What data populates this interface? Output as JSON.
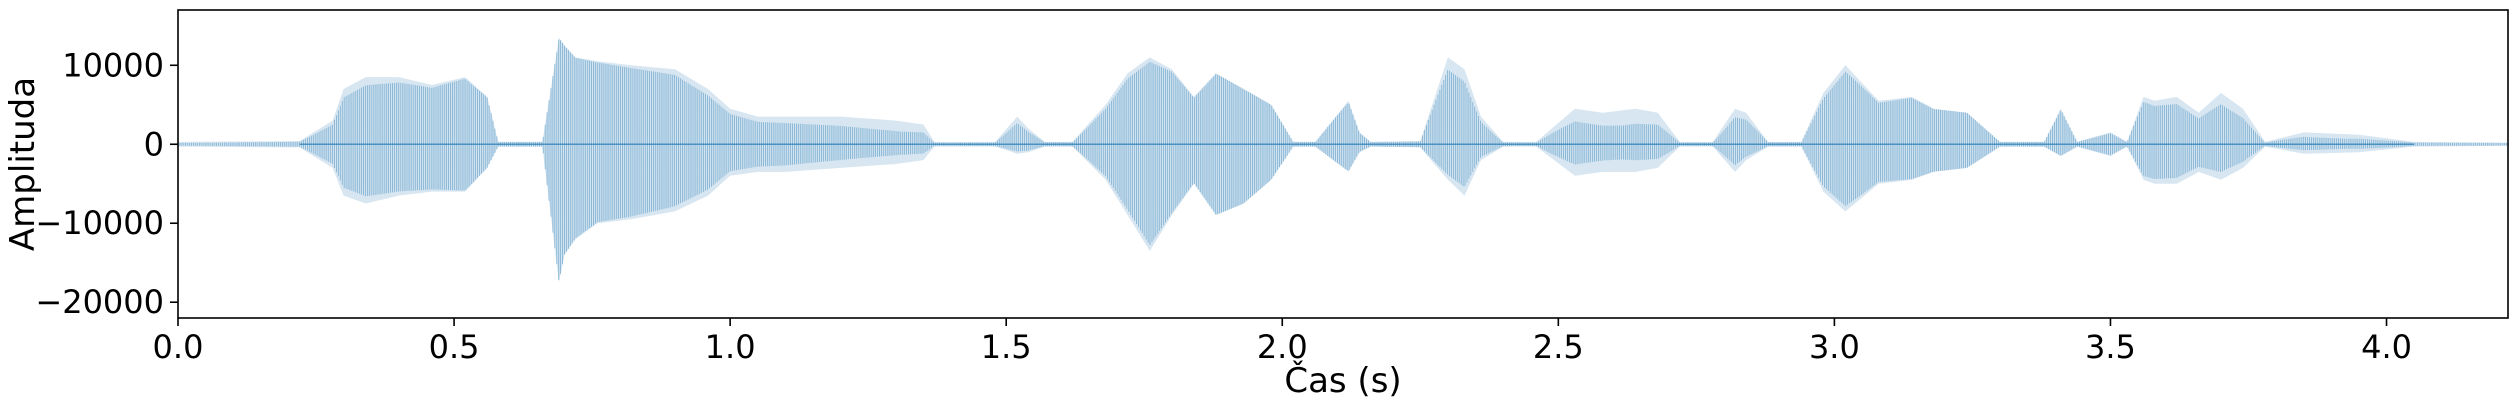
{
  "chart_data": {
    "type": "line",
    "title": "",
    "xlabel": "Čas (s)",
    "ylabel": "Amplituda",
    "xlim": [
      0.0,
      4.22
    ],
    "ylim": [
      -22000,
      17000
    ],
    "x_ticks": [
      0.0,
      0.5,
      1.0,
      1.5,
      2.0,
      2.5,
      3.0,
      3.5,
      4.0
    ],
    "x_tick_labels": [
      "0.0",
      "0.5",
      "1.0",
      "1.5",
      "2.0",
      "2.5",
      "3.0",
      "3.5",
      "4.0"
    ],
    "y_ticks": [
      10000,
      0,
      -10000,
      -20000
    ],
    "y_tick_labels": [
      "10000",
      "0",
      "−10000",
      "−20000"
    ],
    "grid": false,
    "line_color": "#1f77b4",
    "series": [
      {
        "x": [
          0.0,
          0.22,
          0.28,
          0.3,
          0.34,
          0.4,
          0.46,
          0.52,
          0.56,
          0.58,
          0.62,
          0.66,
          0.69,
          0.7,
          0.72,
          0.76,
          0.82,
          0.9,
          0.96,
          1.0,
          1.05,
          1.1,
          1.2,
          1.3,
          1.35,
          1.37,
          1.48,
          1.52,
          1.54,
          1.57,
          1.62,
          1.68,
          1.72,
          1.76,
          1.8,
          1.84,
          1.88,
          1.93,
          1.98,
          2.02,
          2.06,
          2.12,
          2.14,
          2.16,
          2.25,
          2.3,
          2.33,
          2.36,
          2.4,
          2.46,
          2.53,
          2.58,
          2.64,
          2.68,
          2.72,
          2.78,
          2.82,
          2.84,
          2.88,
          2.94,
          2.98,
          3.02,
          3.08,
          3.14,
          3.18,
          3.24,
          3.3,
          3.38,
          3.41,
          3.44,
          3.5,
          3.53,
          3.56,
          3.58,
          3.62,
          3.66,
          3.7,
          3.74,
          3.78,
          3.85,
          3.95,
          4.05,
          4.22
        ],
        "y_max": [
          300,
          400,
          3000,
          7000,
          8500,
          8500,
          7500,
          8500,
          6000,
          300,
          300,
          300,
          13500,
          12500,
          11000,
          10500,
          10000,
          9500,
          7000,
          4500,
          3500,
          3500,
          3500,
          3000,
          2500,
          300,
          300,
          3500,
          2000,
          300,
          300,
          5000,
          9000,
          11000,
          9500,
          6000,
          9000,
          7000,
          5000,
          300,
          300,
          5500,
          1500,
          300,
          400,
          11000,
          9500,
          3500,
          300,
          300,
          4500,
          4000,
          4500,
          4000,
          300,
          300,
          4500,
          4000,
          300,
          300,
          6500,
          10000,
          5500,
          6000,
          4500,
          4000,
          300,
          300,
          4500,
          300,
          1500,
          300,
          6000,
          5500,
          6000,
          4000,
          6500,
          4500,
          300,
          1500,
          1200,
          300,
          200
        ],
        "y_min": [
          -300,
          -400,
          -3000,
          -6500,
          -7500,
          -6500,
          -6000,
          -6000,
          -3000,
          -300,
          -300,
          -300,
          -17500,
          -14000,
          -12000,
          -10000,
          -9500,
          -8500,
          -6500,
          -4000,
          -3500,
          -3500,
          -3000,
          -2500,
          -2000,
          -300,
          -300,
          -1200,
          -1000,
          -300,
          -300,
          -4500,
          -9000,
          -13500,
          -9000,
          -5000,
          -9000,
          -7500,
          -4500,
          -300,
          -300,
          -3500,
          -1000,
          -300,
          -400,
          -4500,
          -6500,
          -2000,
          -300,
          -300,
          -4000,
          -3500,
          -3500,
          -3000,
          -300,
          -300,
          -3500,
          -2000,
          -300,
          -300,
          -6000,
          -8500,
          -5000,
          -4500,
          -3500,
          -3000,
          -300,
          -300,
          -1500,
          -300,
          -1500,
          -300,
          -4500,
          -5000,
          -5000,
          -3500,
          -4500,
          -3000,
          -300,
          -1200,
          -1000,
          -300,
          -200
        ]
      }
    ]
  }
}
